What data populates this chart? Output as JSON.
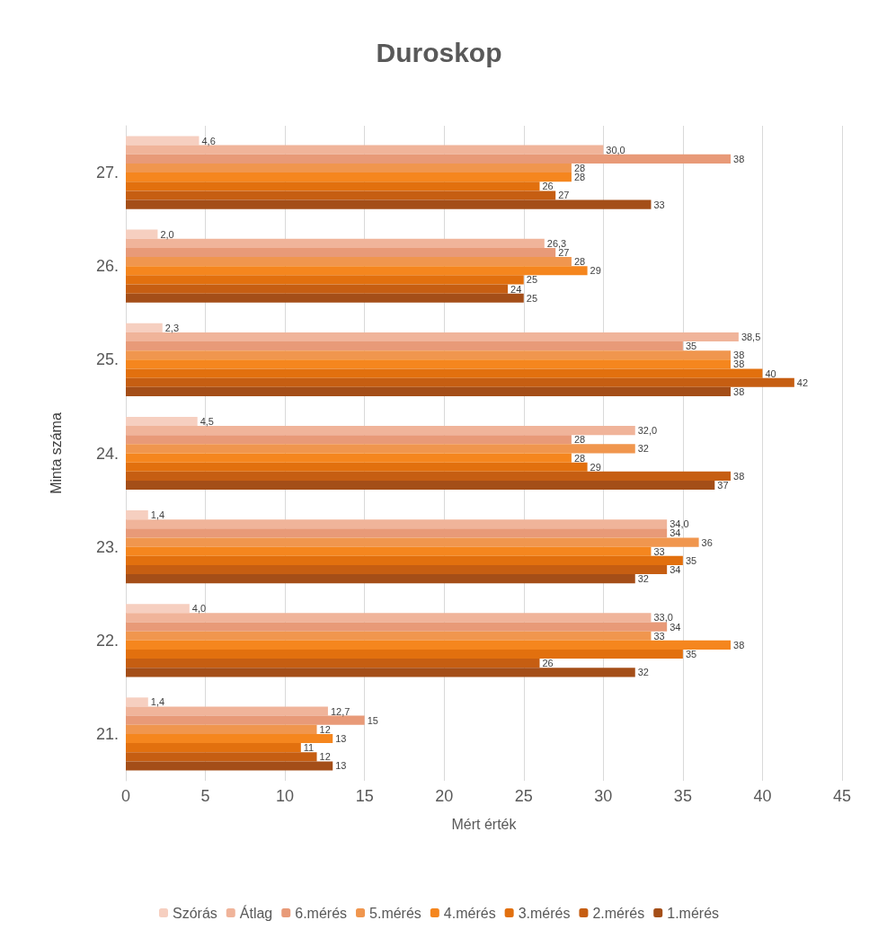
{
  "chart_data": {
    "type": "bar",
    "orientation": "horizontal",
    "title": "Duroskop",
    "xlabel": "Mért érték",
    "ylabel": "Minta száma",
    "categories": [
      "27.",
      "26.",
      "25.",
      "24.",
      "23.",
      "22.",
      "21."
    ],
    "series": [
      {
        "name": "Szórás",
        "color": "#f6cfc0",
        "values": [
          4.6,
          2.0,
          2.3,
          4.5,
          1.4,
          4.0,
          1.4
        ],
        "value_labels": [
          "4,6",
          "2,0",
          "2,3",
          "4,5",
          "1,4",
          "4,0",
          "1,4"
        ]
      },
      {
        "name": "Átlag",
        "color": "#f0b49a",
        "values": [
          30.0,
          26.3,
          38.5,
          32.0,
          34.0,
          33.0,
          12.7
        ],
        "value_labels": [
          "30,0",
          "26,3",
          "38,5",
          "32,0",
          "34,0",
          "33,0",
          "12,7"
        ]
      },
      {
        "name": "6.mérés",
        "color": "#e89a78",
        "values": [
          38,
          27,
          35,
          28,
          34,
          34,
          15
        ],
        "value_labels": [
          "38",
          "27",
          "35",
          "28",
          "34",
          "34",
          "15"
        ]
      },
      {
        "name": "5.mérés",
        "color": "#f0964e",
        "values": [
          28,
          28,
          38,
          32,
          36,
          33,
          12
        ],
        "value_labels": [
          "28",
          "28",
          "38",
          "32",
          "36",
          "33",
          "12"
        ]
      },
      {
        "name": "4.mérés",
        "color": "#f5861e",
        "values": [
          28,
          29,
          38,
          28,
          33,
          38,
          13
        ],
        "value_labels": [
          "28",
          "29",
          "38",
          "28",
          "33",
          "38",
          "13"
        ]
      },
      {
        "name": "3.mérés",
        "color": "#e2700e",
        "values": [
          26,
          25,
          40,
          29,
          35,
          35,
          11
        ],
        "value_labels": [
          "26",
          "25",
          "40",
          "29",
          "35",
          "35",
          "11"
        ]
      },
      {
        "name": "2.mérés",
        "color": "#c65e12",
        "values": [
          27,
          24,
          42,
          38,
          34,
          26,
          12
        ],
        "value_labels": [
          "27",
          "24",
          "42",
          "38",
          "34",
          "26",
          "12"
        ]
      },
      {
        "name": "1.mérés",
        "color": "#a44e18",
        "values": [
          33,
          25,
          38,
          37,
          32,
          32,
          13
        ],
        "value_labels": [
          "33",
          "25",
          "38",
          "37",
          "32",
          "32",
          "13"
        ]
      }
    ],
    "xlim": [
      0,
      45
    ],
    "xticks": [
      0,
      5,
      10,
      15,
      20,
      25,
      30,
      35,
      40,
      45
    ],
    "grid": "x",
    "legend": "bottom"
  }
}
